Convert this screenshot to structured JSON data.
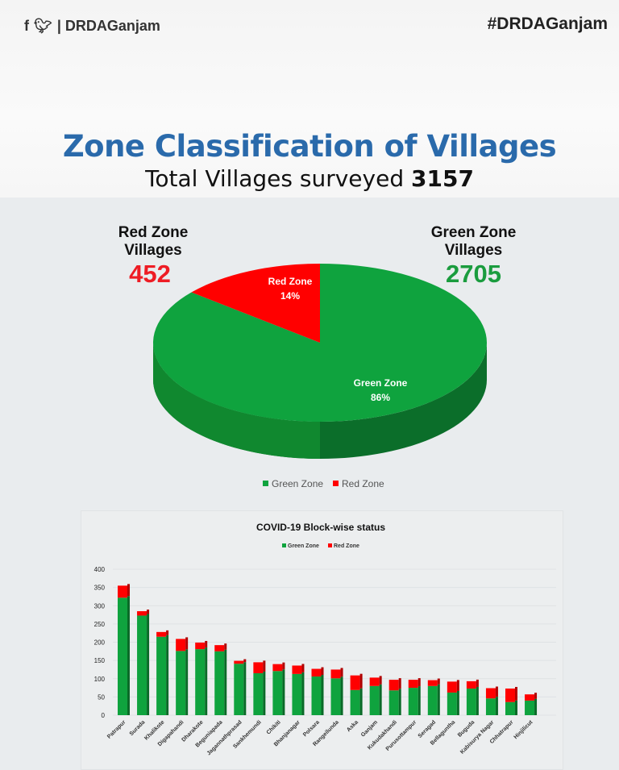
{
  "header": {
    "social_icons": [
      "facebook-icon",
      "twitter-icon"
    ],
    "handle": "| DRDAGanjam",
    "hashtag": "#DRDAGanjam"
  },
  "title": "Zone Classification of Villages",
  "subtitle": {
    "text": "Total Villages surveyed",
    "total": "3157"
  },
  "red_zone": {
    "label_line1": "Red Zone",
    "label_line2": "Villages",
    "value": "452",
    "color": "#ee1c24"
  },
  "green_zone": {
    "label_line1": "Green Zone",
    "label_line2": "Villages",
    "value": "2705",
    "color": "#1a9c3e"
  },
  "chart_data": [
    {
      "type": "pie",
      "title": "",
      "slices": [
        {
          "name": "Green Zone",
          "value": 86,
          "label": "86%",
          "color": "#0fa33e"
        },
        {
          "name": "Red Zone",
          "value": 14,
          "label": "14%",
          "color": "#ff0000"
        }
      ],
      "legend": "bottom",
      "legend_entries": [
        "Green Zone",
        "Red Zone"
      ],
      "style": "3d"
    },
    {
      "type": "bar",
      "stacked": true,
      "title": "COVID-19 Block-wise status",
      "legend": "top",
      "legend_entries": [
        "Green Zone",
        "Red Zone"
      ],
      "ylim": [
        0,
        400
      ],
      "yticks": [
        "0",
        "50",
        "100",
        "150",
        "200",
        "250",
        "300",
        "350",
        "400"
      ],
      "categories": [
        "Patrapur",
        "Surada",
        "Khalikote",
        "Digapahandi",
        "Dharakote",
        "Beguniapada",
        "Jagannathprasad",
        "Sankhemundi",
        "Chikiti",
        "Bhanjanagar",
        "Polsara",
        "Rangeilunda",
        "Aska",
        "Ganjam",
        "Kukudakhandi",
        "Purusottampur",
        "Seragad",
        "Bellaguntha",
        "Buguda",
        "Kabisurya Nagar",
        "Chhatrapur",
        "Hinjilicut"
      ],
      "series": [
        {
          "name": "Green Zone",
          "color": "#0fa33e",
          "values": [
            322,
            273,
            215,
            176,
            181,
            175,
            141,
            115,
            121,
            113,
            106,
            101,
            69,
            80,
            68,
            75,
            80,
            62,
            73,
            46,
            36,
            40
          ]
        },
        {
          "name": "Red Zone",
          "color": "#ff0000",
          "values": [
            33,
            12,
            13,
            33,
            18,
            17,
            8,
            30,
            19,
            23,
            21,
            24,
            40,
            23,
            29,
            22,
            16,
            30,
            20,
            28,
            37,
            17
          ]
        }
      ]
    }
  ]
}
